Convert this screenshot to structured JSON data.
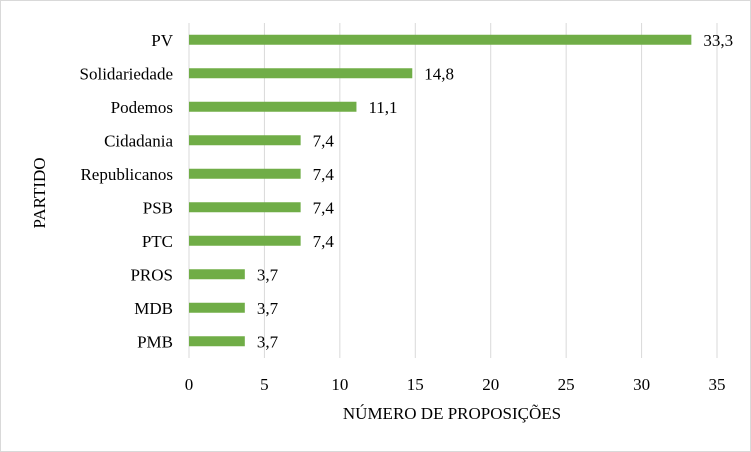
{
  "chart_data": {
    "type": "bar",
    "orientation": "horizontal",
    "categories": [
      "PV",
      "Solidariedade",
      "Podemos",
      "Cidadania",
      "Republicanos",
      "PSB",
      "PTC",
      "PROS",
      "MDB",
      "PMB"
    ],
    "values": [
      33.3,
      14.8,
      11.1,
      7.4,
      7.4,
      7.4,
      7.4,
      3.7,
      3.7,
      3.7
    ],
    "data_labels": [
      "33,3",
      "14,8",
      "11,1",
      "7,4",
      "7,4",
      "7,4",
      "7,4",
      "3,7",
      "3,7",
      "3,7"
    ],
    "xlabel": "NÚMERO DE PROPOSIÇÕES",
    "ylabel": "PARTIDO",
    "xlim": [
      0,
      35
    ],
    "xticks": [
      0,
      5,
      10,
      15,
      20,
      25,
      30,
      35
    ],
    "xtick_labels": [
      "0",
      "5",
      "10",
      "15",
      "20",
      "25",
      "30",
      "35"
    ],
    "grid": "vertical",
    "legend": "none",
    "bar_color": "#70ad47",
    "grid_color": "#d9d9d9"
  }
}
